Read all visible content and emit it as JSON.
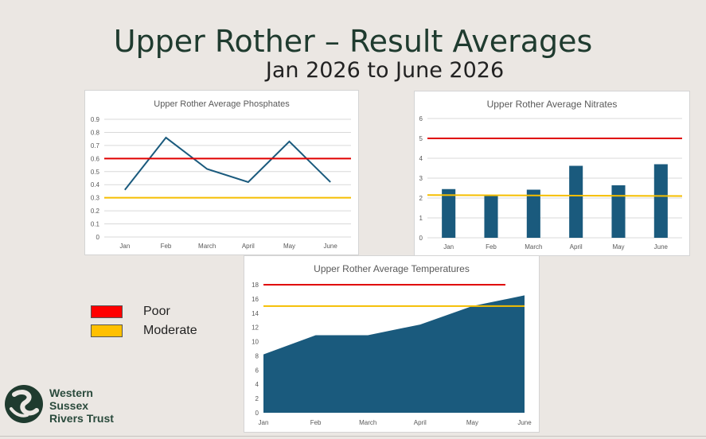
{
  "slide": {
    "title": "Upper Rother – Result Averages",
    "subtitle": "Jan 2026 to June 2026"
  },
  "legend": [
    {
      "label": "Poor",
      "color": "#ff0000"
    },
    {
      "label": "Moderate",
      "color": "#ffc000"
    }
  ],
  "logo": {
    "line1": "Western",
    "line2": "Sussex",
    "line3": "Rivers Trust"
  },
  "colors": {
    "series": "#1a5a7d",
    "poor": "#e00000",
    "moderate": "#f5be00",
    "grid": "#d9d9d9"
  },
  "chart_data": [
    {
      "type": "line",
      "title": "Upper Rother Average Phosphates",
      "categories": [
        "Jan",
        "Feb",
        "March",
        "April",
        "May",
        "June"
      ],
      "values": [
        0.36,
        0.76,
        0.52,
        0.42,
        0.73,
        0.42
      ],
      "ylim": [
        0,
        0.9
      ],
      "yticks": [
        "0",
        "0.1",
        "0.2",
        "0.3",
        "0.4",
        "0.5",
        "0.6",
        "0.7",
        "0.8",
        "0.9"
      ],
      "thresholds": {
        "poor": [
          0.6,
          0.6
        ],
        "moderate": [
          0.3,
          0.3
        ]
      },
      "grid": true
    },
    {
      "type": "bar",
      "title": "Upper Rother Average Nitrates",
      "categories": [
        "Jan",
        "Feb",
        "March",
        "April",
        "May",
        "June"
      ],
      "values": [
        2.45,
        2.1,
        2.42,
        3.62,
        2.64,
        3.7
      ],
      "ylim": [
        0,
        6
      ],
      "yticks": [
        "0",
        "1",
        "2",
        "3",
        "4",
        "5",
        "6"
      ],
      "thresholds": {
        "poor": [
          5,
          5
        ],
        "moderate": [
          2.15,
          2.1
        ]
      },
      "grid": true
    },
    {
      "type": "area",
      "title": "Upper Rother Average Temperatures",
      "categories": [
        "Jan",
        "Feb",
        "March",
        "April",
        "May",
        "June"
      ],
      "values": [
        8.2,
        10.9,
        10.9,
        12.4,
        15.0,
        16.5
      ],
      "ylim": [
        0,
        18
      ],
      "yticks": [
        "0",
        "2",
        "4",
        "6",
        "8",
        "10",
        "12",
        "14",
        "16",
        "18"
      ],
      "thresholds": {
        "poor": [
          18,
          18
        ],
        "moderate": [
          15,
          15
        ]
      },
      "grid": false
    }
  ]
}
